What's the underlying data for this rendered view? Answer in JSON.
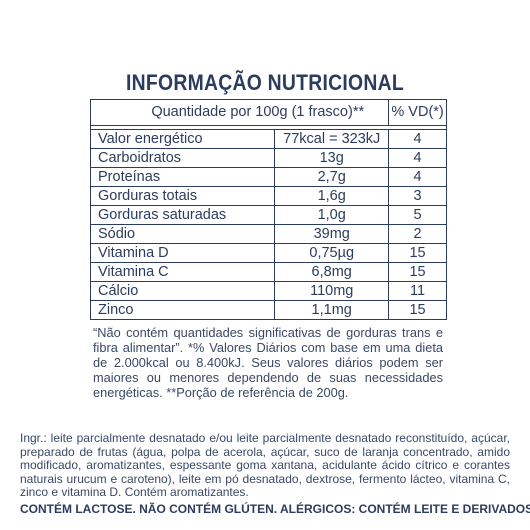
{
  "title": "INFORMAÇÃO NUTRICIONAL",
  "table": {
    "header_quantity": "Quantidade por 100g (1 frasco)**",
    "header_vd": "% VD(*)",
    "rows": [
      {
        "name": "Valor energético",
        "amount": "77kcal = 323kJ",
        "vd": "4"
      },
      {
        "name": "Carboidratos",
        "amount": "13g",
        "vd": "4"
      },
      {
        "name": "Proteínas",
        "amount": "2,7g",
        "vd": "4"
      },
      {
        "name": "Gorduras totais",
        "amount": "1,6g",
        "vd": "3"
      },
      {
        "name": "Gorduras saturadas",
        "amount": "1,0g",
        "vd": "5"
      },
      {
        "name": "Sódio",
        "amount": "39mg",
        "vd": "2"
      },
      {
        "name": "Vitamina D",
        "amount": "0,75µg",
        "vd": "15"
      },
      {
        "name": "Vitamina C",
        "amount": "6,8mg",
        "vd": "15"
      },
      {
        "name": "Cálcio",
        "amount": "110mg",
        "vd": "11"
      },
      {
        "name": "Zinco",
        "amount": "1,1mg",
        "vd": "15"
      }
    ]
  },
  "footnote": "“Não contém quantidades significativas de gorduras trans e fibra alimentar”. *% Valores Diários com base em uma dieta de 2.000kcal ou 8.400kJ. Seus valores diários podem ser maiores ou menores dependendo de suas necessidades energéticas. **Porção de referência de 200g.",
  "ingredients": "Ingr.: leite parcialmente desnatado e/ou leite parcialmente desnatado reconstituído, açúcar, preparado de frutas (água, polpa de acerola, açúcar, suco de laranja concentrado, amido modificado, aromatizantes, espessante goma xantana, acidulante ácido cítrico e corantes naturais urucum e caroteno), leite em pó desnatado, dextrose, fermento lácteo, vitamina C, zinco e vitamina D. Contém aromatizantes.",
  "allergens": "CONTÉM LACTOSE. NÃO CONTÉM GLÚTEN. ALÉRGICOS: CONTÉM LEITE E DERIVADOS."
}
